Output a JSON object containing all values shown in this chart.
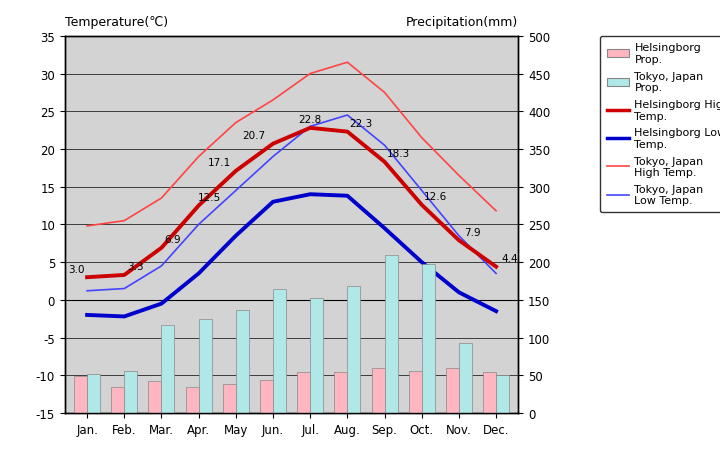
{
  "months": [
    "Jan.",
    "Feb.",
    "Mar.",
    "Apr.",
    "May",
    "Jun.",
    "Jul.",
    "Aug.",
    "Sep.",
    "Oct.",
    "Nov.",
    "Dec."
  ],
  "helsingborg_high": [
    3.0,
    3.3,
    6.9,
    12.5,
    17.1,
    20.7,
    22.8,
    22.3,
    18.3,
    12.6,
    7.9,
    4.4
  ],
  "helsingborg_low": [
    -2.0,
    -2.2,
    -0.5,
    3.5,
    8.5,
    13.0,
    14.0,
    13.8,
    9.5,
    5.0,
    1.0,
    -1.5
  ],
  "tokyo_high": [
    9.8,
    10.5,
    13.5,
    19.0,
    23.5,
    26.5,
    30.0,
    31.5,
    27.5,
    21.5,
    16.5,
    11.8
  ],
  "tokyo_low": [
    1.2,
    1.5,
    4.5,
    10.0,
    14.5,
    19.0,
    23.0,
    24.5,
    20.5,
    14.5,
    8.5,
    3.5
  ],
  "helsingborg_precip": [
    49,
    35,
    42,
    34,
    38,
    44,
    55,
    55,
    59,
    56,
    60,
    55
  ],
  "tokyo_precip": [
    52,
    56,
    117,
    124,
    137,
    165,
    153,
    168,
    209,
    197,
    93,
    51
  ],
  "temp_ylim": [
    -15,
    35
  ],
  "precip_ylim": [
    0,
    500
  ],
  "bg_color": "#d3d3d3",
  "title_left": "Temperature(℃)",
  "title_right": "Precipitation(mm)",
  "helsingborg_high_color": "#cc0000",
  "helsingborg_low_color": "#0000cc",
  "tokyo_high_color": "#ff4444",
  "tokyo_low_color": "#4444ff",
  "helsingborg_precip_color": "#ffb6c1",
  "tokyo_precip_color": "#b0e8e8",
  "temp_ticks": [
    -15,
    -10,
    -5,
    0,
    5,
    10,
    15,
    20,
    25,
    30,
    35
  ],
  "precip_ticks": [
    0,
    50,
    100,
    150,
    200,
    250,
    300,
    350,
    400,
    450,
    500
  ],
  "hh_labels": [
    "3.0",
    "3.3",
    "6.9",
    "12.5",
    "17.1",
    "20.7",
    "22.8",
    "22.3",
    "18.3",
    "12.6",
    "7.9",
    "4.4"
  ]
}
